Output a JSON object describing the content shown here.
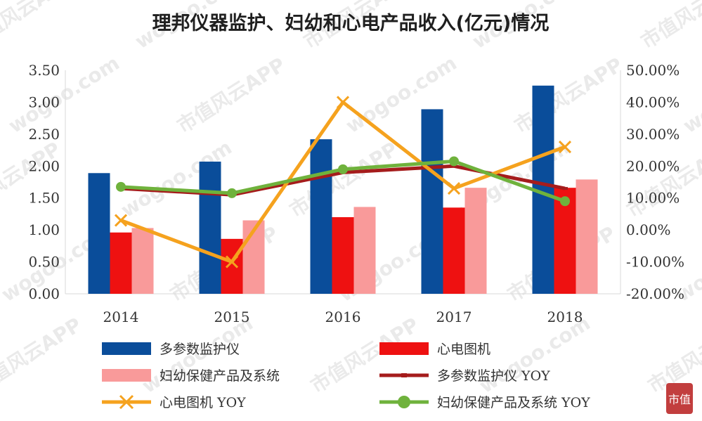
{
  "chart_data": {
    "type": "bar",
    "title": "理邦仪器监护、妇幼和心电产品收入(亿元)情况",
    "categories": [
      "2014",
      "2015",
      "2016",
      "2017",
      "2018"
    ],
    "series": [
      {
        "name": "多参数监护仪",
        "kind": "bar",
        "axis": "left",
        "color": "#0a4d9a",
        "values": [
          1.89,
          2.07,
          2.42,
          2.89,
          3.26
        ]
      },
      {
        "name": "心电图机",
        "kind": "bar",
        "axis": "left",
        "color": "#ee1111",
        "values": [
          0.96,
          0.86,
          1.2,
          1.35,
          1.66
        ]
      },
      {
        "name": "妇幼保健产品及系统",
        "kind": "bar",
        "axis": "left",
        "color": "#f99a9a",
        "values": [
          1.03,
          1.15,
          1.36,
          1.66,
          1.79
        ]
      },
      {
        "name": "多参数监护仪 YOY",
        "kind": "line",
        "axis": "right",
        "color": "#a51c1c",
        "marker": "dash",
        "values": [
          0.13,
          0.11,
          0.18,
          0.2,
          0.13
        ]
      },
      {
        "name": "心电图机 YOY",
        "kind": "line",
        "axis": "right",
        "color": "#f5a21e",
        "marker": "x",
        "values": [
          0.03,
          -0.1,
          0.4,
          0.13,
          0.26
        ]
      },
      {
        "name": "妇幼保健产品及系统 YOY",
        "kind": "line",
        "axis": "right",
        "color": "#6fb23c",
        "marker": "circle",
        "values": [
          0.135,
          0.115,
          0.19,
          0.215,
          0.09
        ]
      }
    ],
    "y_left": {
      "min": 0,
      "max": 3.5,
      "ticks": [
        "0.00",
        "0.50",
        "1.00",
        "1.50",
        "2.00",
        "2.50",
        "3.00",
        "3.50"
      ]
    },
    "y_right": {
      "min": -0.2,
      "max": 0.5,
      "ticks": [
        "-20.00%",
        "-10.00%",
        "0.00%",
        "10.00%",
        "20.00%",
        "30.00%",
        "40.00%",
        "50.00%"
      ]
    },
    "grid": false,
    "legend_position": "bottom"
  },
  "watermark": {
    "text_a": "市值风云APP",
    "text_b": "wogoo.com",
    "badge": "市值"
  }
}
